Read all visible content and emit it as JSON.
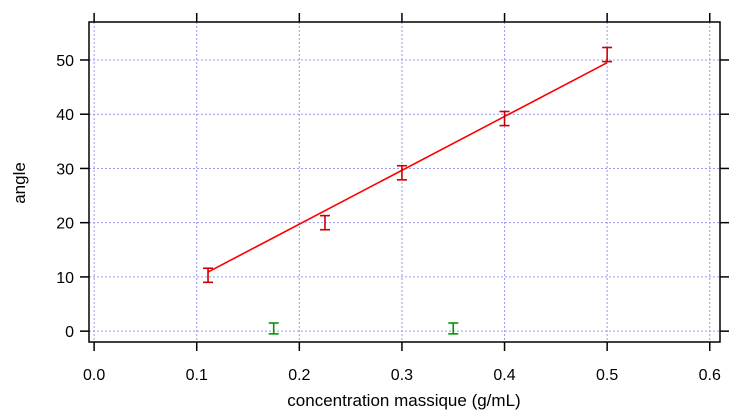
{
  "chart_data": {
    "type": "scatter",
    "title": "",
    "xlabel": "concentration massique (g/mL)",
    "ylabel": "angle",
    "xlim": [
      -0.005,
      0.61
    ],
    "ylim": [
      -2,
      57
    ],
    "grid": true,
    "x_ticks": [
      0.0,
      0.1,
      0.2,
      0.3,
      0.4,
      0.5,
      0.6
    ],
    "x_tick_labels": [
      "0.0",
      "0.1",
      "0.2",
      "0.3",
      "0.4",
      "0.5",
      "0.6"
    ],
    "y_ticks": [
      0,
      10,
      20,
      30,
      40,
      50
    ],
    "y_tick_labels": [
      "0",
      "10",
      "20",
      "30",
      "40",
      "50"
    ],
    "colors": {
      "series_main": "#cc0000",
      "series_secondary": "#009900",
      "fit": "#ff0000",
      "grid": "#9999ee"
    },
    "series": [
      {
        "color": "#cc0000",
        "points": [
          {
            "x": 0.111,
            "y": 10.3,
            "err": 1.3
          },
          {
            "x": 0.225,
            "y": 20.0,
            "err": 1.3
          },
          {
            "x": 0.3,
            "y": 29.2,
            "err": 1.3
          },
          {
            "x": 0.4,
            "y": 39.2,
            "err": 1.3
          },
          {
            "x": 0.5,
            "y": 51.0,
            "err": 1.3
          }
        ]
      },
      {
        "color": "#009900",
        "points": [
          {
            "x": 0.175,
            "y": 0.5,
            "err": 1.0
          },
          {
            "x": 0.35,
            "y": 0.5,
            "err": 1.0
          }
        ]
      }
    ],
    "fit_line": {
      "color": "#ff0000",
      "x": [
        0.111,
        0.5
      ],
      "y": [
        10.9,
        49.5
      ]
    }
  }
}
